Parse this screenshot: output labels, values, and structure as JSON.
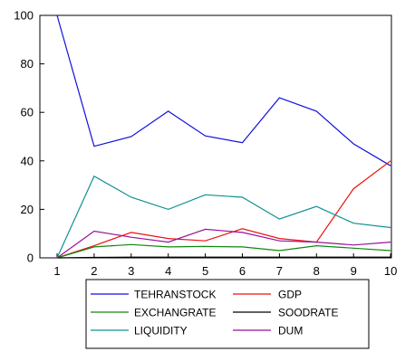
{
  "chart_data": {
    "type": "line",
    "title": "",
    "xlabel": "",
    "ylabel": "",
    "categories": [
      "1",
      "2",
      "3",
      "4",
      "5",
      "6",
      "7",
      "8",
      "9",
      "10"
    ],
    "ylim": [
      0,
      100
    ],
    "yticks": [
      "0",
      "20",
      "40",
      "60",
      "80",
      "100"
    ],
    "grid": false,
    "legend_position": "bottom",
    "series": [
      {
        "name": "TEHRANSTOCK",
        "color": "#1010dd",
        "values": [
          100,
          46,
          50,
          60.5,
          50.3,
          47.5,
          66,
          60.5,
          47,
          38
        ]
      },
      {
        "name": "GDP",
        "color": "#ee1111",
        "values": [
          0,
          5,
          10.5,
          8,
          7,
          12,
          8,
          6.5,
          28.5,
          40
        ]
      },
      {
        "name": "EXCHANGRATE",
        "color": "#108810",
        "values": [
          0,
          4.5,
          5.5,
          4.5,
          4.7,
          4.5,
          3,
          5,
          4,
          3
        ]
      },
      {
        "name": "SOODRATE",
        "color": "#000000",
        "values": [
          0,
          0.2,
          0.3,
          0.3,
          0.3,
          0.3,
          0.3,
          0.3,
          0.3,
          0.3
        ]
      },
      {
        "name": "LIQUIDITY",
        "color": "#109090",
        "values": [
          0,
          33.7,
          25,
          20,
          26,
          25,
          16,
          21.2,
          14.3,
          12.5
        ]
      },
      {
        "name": "DUM",
        "color": "#991199",
        "values": [
          0,
          11,
          8.5,
          6.5,
          11.8,
          10.5,
          7,
          6.5,
          5.3,
          6.5
        ]
      }
    ]
  }
}
